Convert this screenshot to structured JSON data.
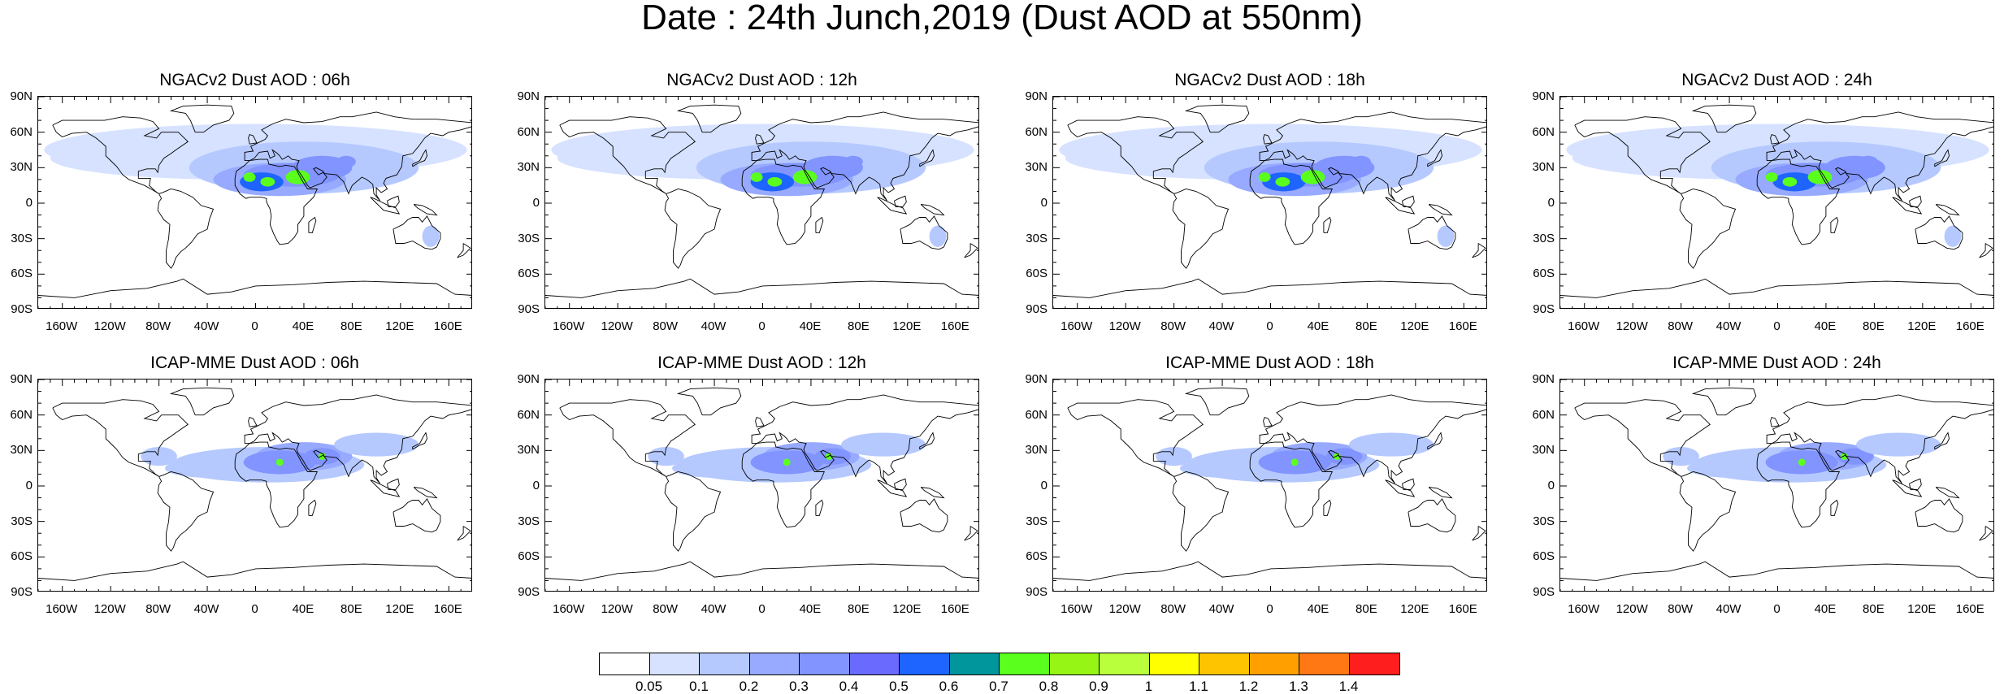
{
  "title": "Date : 24th Junch,2019 (Dust AOD at 550nm)",
  "panels": [
    {
      "title": "NGACv2 Dust AOD : 06h",
      "model": "NGACv2",
      "hour": "06h"
    },
    {
      "title": "NGACv2 Dust AOD : 12h",
      "model": "NGACv2",
      "hour": "12h"
    },
    {
      "title": "NGACv2 Dust AOD : 18h",
      "model": "NGACv2",
      "hour": "18h"
    },
    {
      "title": "NGACv2 Dust AOD : 24h",
      "model": "NGACv2",
      "hour": "24h"
    },
    {
      "title": "ICAP-MME Dust AOD : 06h",
      "model": "ICAP-MME",
      "hour": "06h"
    },
    {
      "title": "ICAP-MME Dust AOD : 12h",
      "model": "ICAP-MME",
      "hour": "12h"
    },
    {
      "title": "ICAP-MME Dust AOD : 18h",
      "model": "ICAP-MME",
      "hour": "18h"
    },
    {
      "title": "ICAP-MME Dust AOD : 24h",
      "model": "ICAP-MME",
      "hour": "24h"
    }
  ],
  "lat_ticks": [
    "90N",
    "60N",
    "30N",
    "0",
    "30S",
    "60S",
    "90S"
  ],
  "lon_ticks": [
    "160W",
    "120W",
    "80W",
    "40W",
    "0",
    "40E",
    "80E",
    "120E",
    "160E"
  ],
  "colorbar": {
    "labels": [
      "0.05",
      "0.1",
      "0.2",
      "0.3",
      "0.4",
      "0.5",
      "0.6",
      "0.7",
      "0.8",
      "0.9",
      "1",
      "1.1",
      "1.2",
      "1.3",
      "1.4"
    ],
    "colors": [
      "#ffffff",
      "#d6e2ff",
      "#b5c9ff",
      "#97aaff",
      "#8194ff",
      "#6a6aff",
      "#1e64ff",
      "#00969c",
      "#5aff1e",
      "#96f514",
      "#b9ff3c",
      "#ffff00",
      "#ffc400",
      "#ffa000",
      "#ff7814",
      "#ff1e1e"
    ]
  }
}
